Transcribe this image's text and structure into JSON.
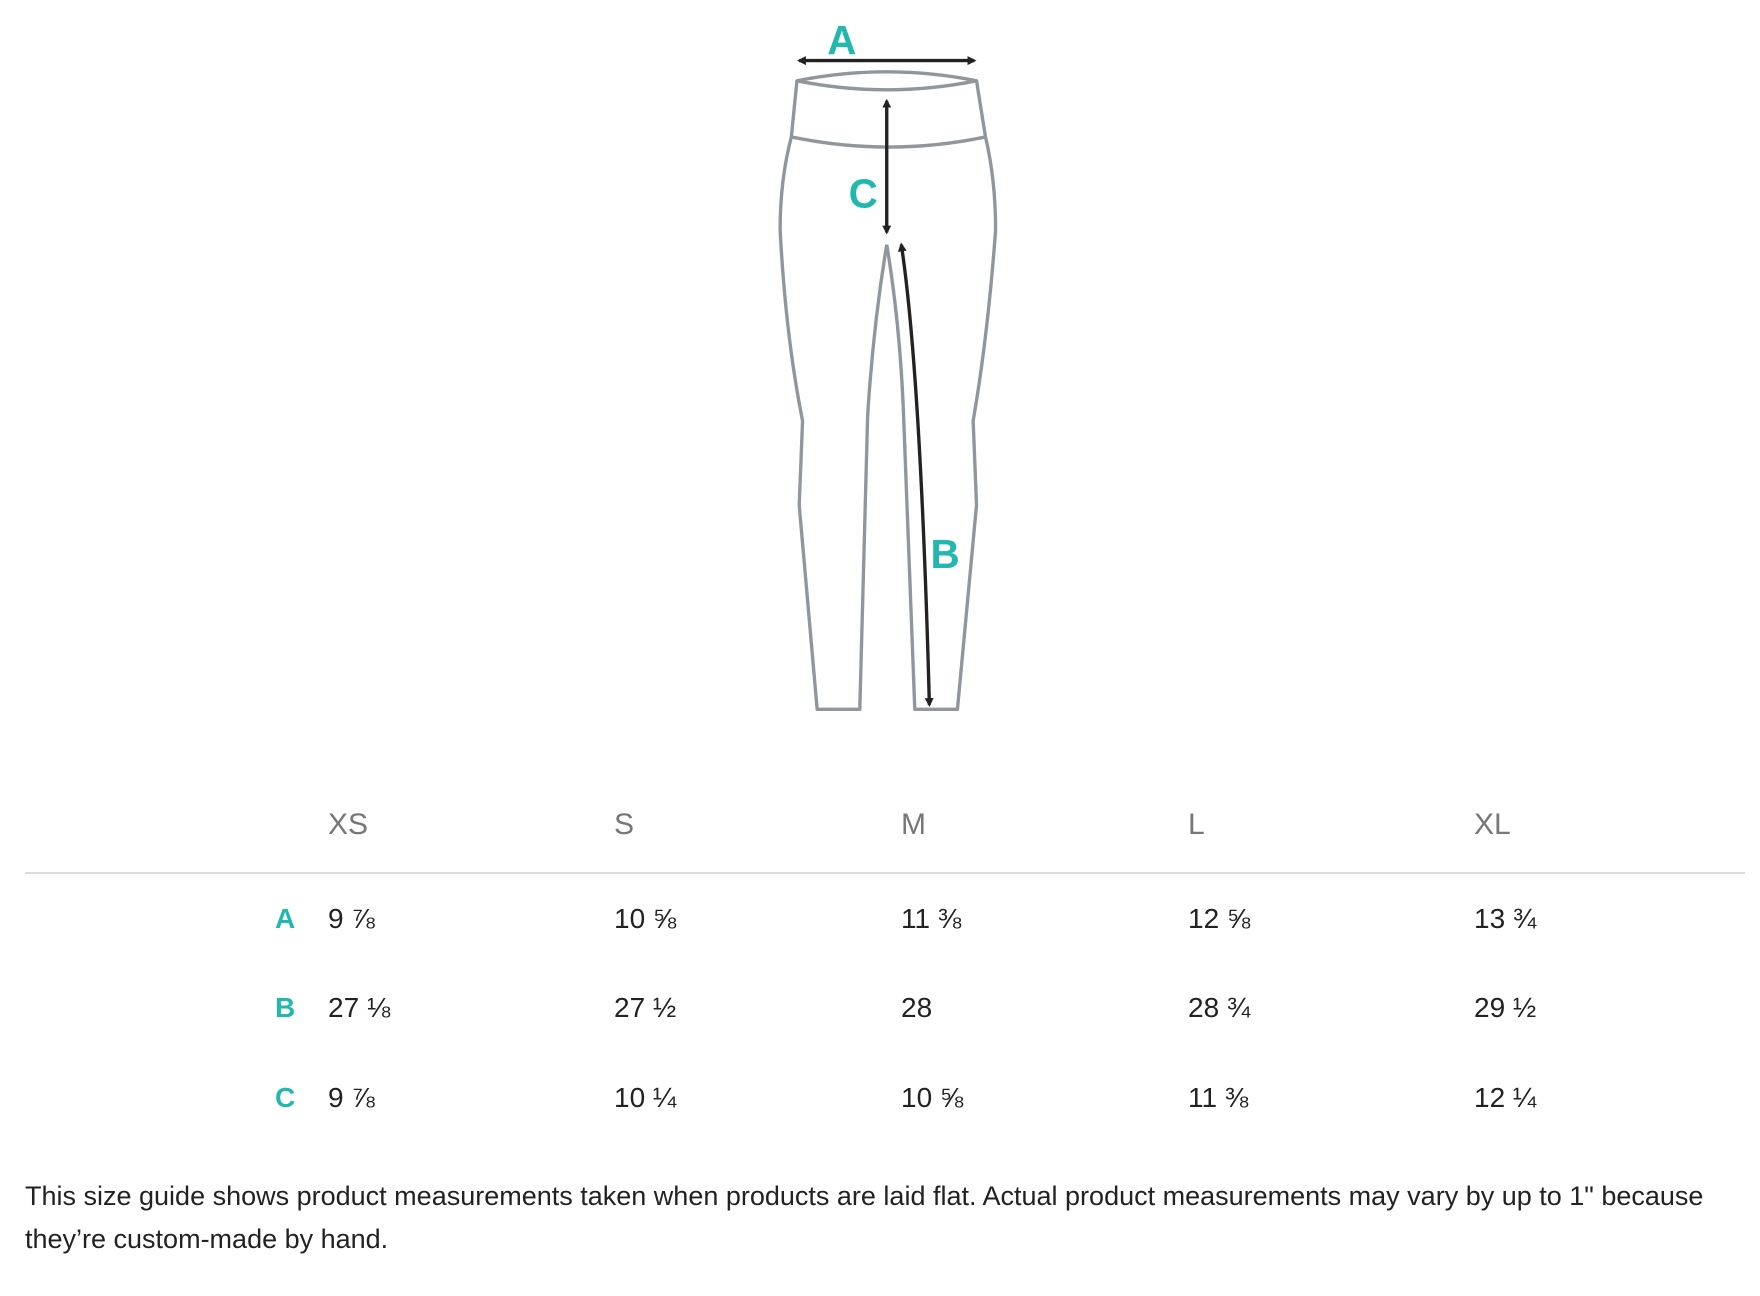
{
  "diagram": {
    "labels": {
      "a": "A",
      "b": "B",
      "c": "C"
    },
    "colors": {
      "label": "#22b8ad",
      "outline": "#8f979c",
      "arrow": "#222222"
    }
  },
  "table": {
    "sizes": [
      "XS",
      "S",
      "M",
      "L",
      "XL"
    ],
    "rows": [
      {
        "label": "A",
        "values": [
          "9 ⅞",
          "10 ⅝",
          "11 ⅜",
          "12 ⅝",
          "13 ¾"
        ]
      },
      {
        "label": "B",
        "values": [
          "27 ⅛",
          "27 ½",
          "28",
          "28 ¾",
          "29 ½"
        ]
      },
      {
        "label": "C",
        "values": [
          "9 ⅞",
          "10 ¼",
          "10 ⅝",
          "11 ⅜",
          "12 ¼"
        ]
      }
    ]
  },
  "note": "This size guide shows product measurements taken when products are laid flat. Actual product measurements may vary by up to 1\" because they’re custom-made by hand."
}
